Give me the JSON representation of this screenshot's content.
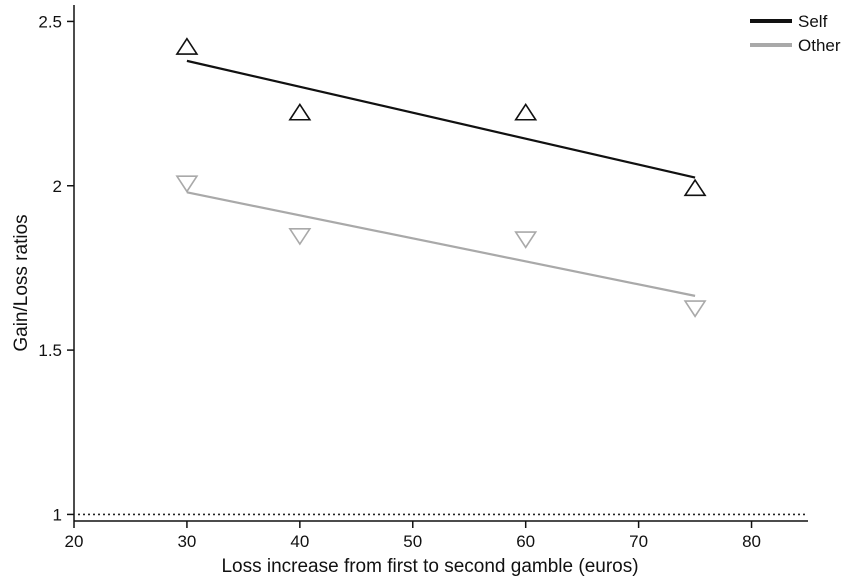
{
  "chart_data": {
    "type": "scatter",
    "title": "",
    "xlabel": "Loss increase from first to second gamble (euros)",
    "ylabel": "Gain/Loss ratios",
    "xlim": [
      20,
      85
    ],
    "ylim": [
      0.98,
      2.55
    ],
    "x_ticks": [
      20,
      30,
      40,
      50,
      60,
      70,
      80
    ],
    "x_tick_labels": [
      "20",
      "30",
      "40",
      "50",
      "60",
      "70",
      "80"
    ],
    "y_ticks": [
      1,
      1.5,
      2,
      2.5
    ],
    "y_tick_labels": [
      "1",
      "1.5",
      "2",
      "2.5"
    ],
    "grid": false,
    "legend_position": "top-right",
    "reference_line": {
      "y": 1,
      "style": "dotted",
      "color": "#222222"
    },
    "series": [
      {
        "name": "Self",
        "color": "#111111",
        "marker": "triangle-up",
        "points": [
          {
            "x": 30,
            "y": 2.42
          },
          {
            "x": 40,
            "y": 2.22
          },
          {
            "x": 60,
            "y": 2.22
          },
          {
            "x": 75,
            "y": 1.99
          }
        ],
        "fit": {
          "x": [
            30,
            75
          ],
          "y": [
            2.38,
            2.025
          ]
        }
      },
      {
        "name": "Other",
        "color": "#a9a9a9",
        "marker": "triangle-down",
        "points": [
          {
            "x": 30,
            "y": 2.01
          },
          {
            "x": 40,
            "y": 1.85
          },
          {
            "x": 60,
            "y": 1.84
          },
          {
            "x": 75,
            "y": 1.63
          }
        ],
        "fit": {
          "x": [
            30,
            75
          ],
          "y": [
            1.98,
            1.665
          ]
        }
      }
    ]
  }
}
